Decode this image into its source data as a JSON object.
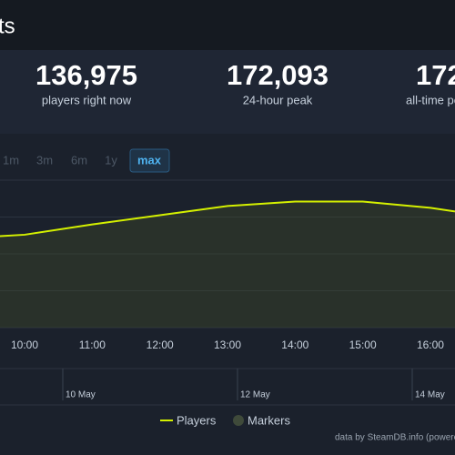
{
  "header": {
    "title": "ts"
  },
  "stats": [
    {
      "value": "136,975",
      "label": "players right now"
    },
    {
      "value": "172,093",
      "label": "24-hour peak"
    },
    {
      "value": "172",
      "label": "all-time peak"
    }
  ],
  "range_buttons": [
    "1m",
    "3m",
    "6m",
    "1y",
    "max"
  ],
  "chart_data": {
    "type": "line",
    "categories": [
      null,
      "10:00",
      "11:00",
      "12:00",
      "13:00",
      "14:00",
      "15:00",
      "16:00",
      null
    ],
    "series": [
      {
        "name": "Players",
        "color": "#d4f000",
        "values": [
          124000,
          126000,
          140000,
          152500,
          165000,
          171000,
          171000,
          162500,
          157500
        ]
      }
    ],
    "markers_legend": "Markers",
    "ylim": [
      0,
      200000
    ],
    "yticks": [
      0,
      50000,
      100000,
      150000,
      200000
    ],
    "grid": true
  },
  "navigator_labels": [
    "10 May",
    "12 May",
    "14 May"
  ],
  "credit": "data by SteamDB.info (powered by Highcharts)"
}
